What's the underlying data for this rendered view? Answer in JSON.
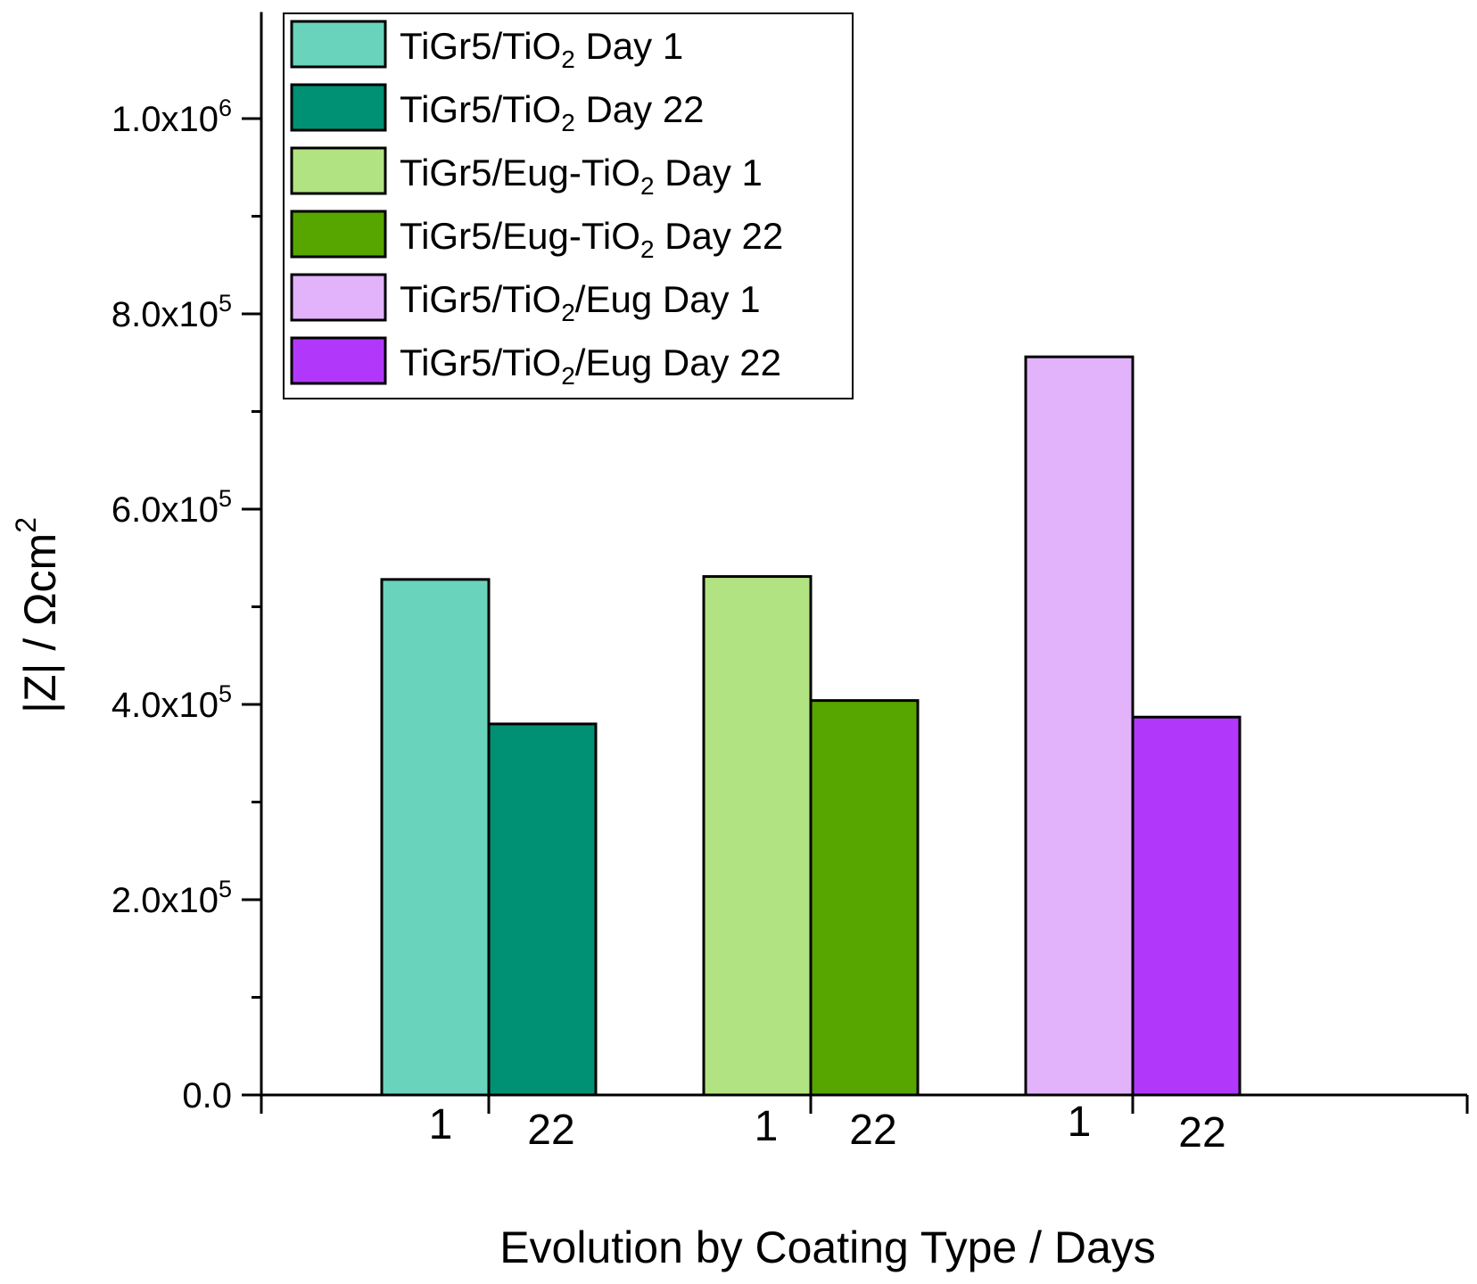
{
  "chart_data": {
    "type": "bar",
    "title": "",
    "xlabel": "Evolution by Coating Type / Days",
    "ylabel": {
      "text": "|Z| / Ωcm",
      "sup": "2"
    },
    "ylim": [
      0,
      1100000
    ],
    "grid": false,
    "legend_position": "top-left",
    "yticks": [
      {
        "value": 0,
        "mantissa": "0.0",
        "exp": ""
      },
      {
        "value": 200000,
        "mantissa": "2.0x10",
        "exp": "5"
      },
      {
        "value": 400000,
        "mantissa": "4.0x10",
        "exp": "5"
      },
      {
        "value": 600000,
        "mantissa": "6.0x10",
        "exp": "5"
      },
      {
        "value": 800000,
        "mantissa": "8.0x10",
        "exp": "5"
      },
      {
        "value": 1000000,
        "mantissa": "1.0x10",
        "exp": "6"
      }
    ],
    "groups": [
      {
        "name": "TiGr5/TiO2",
        "bars": [
          {
            "series": "TiGr5/TiO2 Day 1",
            "day_label": "1",
            "value": 528000,
            "color": "#6ad3bb"
          },
          {
            "series": "TiGr5/TiO2 Day 22",
            "day_label": "22",
            "value": 380000,
            "color": "#009073"
          }
        ]
      },
      {
        "name": "TiGr5/Eug-TiO2",
        "bars": [
          {
            "series": "TiGr5/Eug-TiO2 Day 1",
            "day_label": "1",
            "value": 531000,
            "color": "#b2e383"
          },
          {
            "series": "TiGr5/Eug-TiO2 Day 22",
            "day_label": "22",
            "value": 404000,
            "color": "#57a600"
          }
        ]
      },
      {
        "name": "TiGr5/TiO2/Eug",
        "bars": [
          {
            "series": "TiGr5/TiO2/Eug Day 1",
            "day_label": "1",
            "value": 756000,
            "color": "#e2b3fa"
          },
          {
            "series": "TiGr5/TiO2/Eug Day 22",
            "day_label": "22",
            "value": 387000,
            "color": "#b138fa"
          }
        ]
      }
    ],
    "legend": [
      {
        "pre": "TiGr5/TiO",
        "sub": "2",
        "post": " Day 1",
        "color": "#6ad3bb"
      },
      {
        "pre": "TiGr5/TiO",
        "sub": "2",
        "post": " Day 22",
        "color": "#009073"
      },
      {
        "pre": "TiGr5/Eug-TiO",
        "sub": "2",
        "post": " Day 1",
        "color": "#b2e383"
      },
      {
        "pre": "TiGr5/Eug-TiO",
        "sub": "2",
        "post": " Day 22",
        "color": "#57a600"
      },
      {
        "pre": "TiGr5/TiO",
        "sub": "2",
        "post": "/Eug Day 1",
        "color": "#e2b3fa"
      },
      {
        "pre": "TiGr5/TiO",
        "sub": "2",
        "post": "/Eug Day 22",
        "color": "#b138fa"
      }
    ]
  }
}
